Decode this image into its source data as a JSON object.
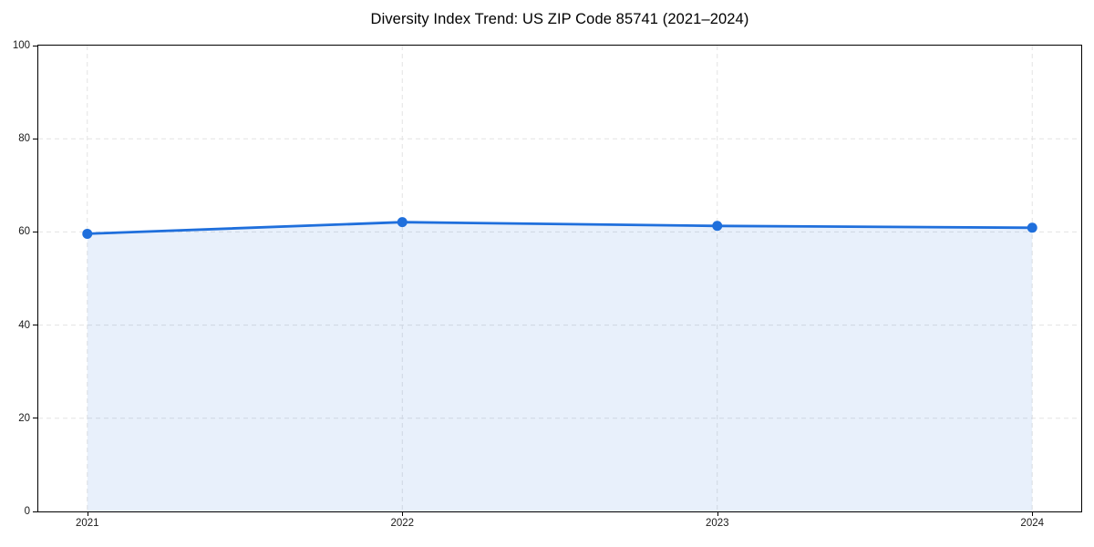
{
  "chart_data": {
    "type": "area",
    "title": "Diversity Index Trend: US ZIP Code 85741 (2021–2024)",
    "x": [
      "2021",
      "2022",
      "2023",
      "2024"
    ],
    "series": [
      {
        "name": "Diversity Index",
        "values": [
          59.6,
          62.1,
          61.3,
          60.9
        ]
      }
    ],
    "xlabel": "",
    "ylabel": "",
    "ylim": [
      0,
      100
    ],
    "yticks": [
      0,
      20,
      40,
      60,
      80,
      100
    ],
    "grid": true,
    "grid_style": "dashed",
    "legend_position": "none",
    "marker": "circle",
    "colors": {
      "line": "#1f6fdc",
      "fill": "#1f6fdc",
      "fill_opacity": 0.1,
      "grid": "#e3e3e3",
      "axis": "#000000",
      "text": "#1a1a1a"
    }
  }
}
